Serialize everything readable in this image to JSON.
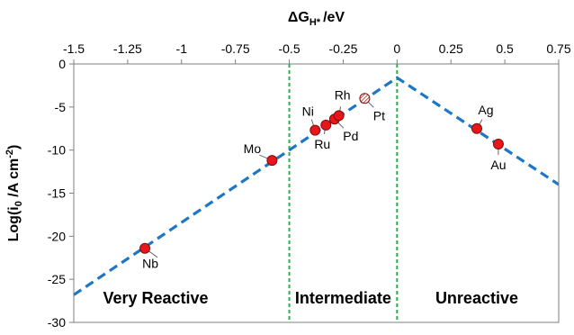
{
  "chart_data": {
    "type": "scatter",
    "xlabel": "ΔG",
    "xlabel_sub": "H*",
    "xlabel_unit": "/eV",
    "ylabel": "Log(i",
    "ylabel_sub": "0",
    "ylabel_rest": " /A cm",
    "ylabel_sup": "-2",
    "ylabel_close": ")",
    "xlim": [
      -1.5,
      0.75
    ],
    "ylim": [
      -30,
      0
    ],
    "x_ticks": [
      "-1.5",
      "-1.25",
      "-1",
      "-0.75",
      "-0.5",
      "-0.25",
      "0",
      "0.25",
      "0.5",
      "0.75"
    ],
    "x_tick_values": [
      -1.5,
      -1.25,
      -1,
      -0.75,
      -0.5,
      -0.25,
      0,
      0.25,
      0.5,
      0.75
    ],
    "y_ticks": [
      "0",
      "-5",
      "-10",
      "-15",
      "-20",
      "-25",
      "-30"
    ],
    "y_tick_values": [
      0,
      -5,
      -10,
      -15,
      -20,
      -25,
      -30
    ],
    "x_axis_position": "top",
    "grid": false,
    "trend_line": {
      "points": [
        [
          -1.5,
          -26.8
        ],
        [
          0,
          -1.6
        ],
        [
          0.75,
          -14.0
        ]
      ],
      "color": "#1f77c4",
      "style": "dashed"
    },
    "region_dividers": {
      "x": [
        -0.5,
        0
      ],
      "color": "#22b14c",
      "style": "dashed"
    },
    "regions": [
      {
        "label": "Very Reactive",
        "x": -1.12
      },
      {
        "label": "Intermediate",
        "x": -0.25
      },
      {
        "label": "Unreactive",
        "x": 0.37
      }
    ],
    "points": [
      {
        "label": "Nb",
        "x": -1.17,
        "y": -21.4,
        "fill": "#e8161b",
        "hatched": false
      },
      {
        "label": "Mo",
        "x": -0.58,
        "y": -11.2,
        "fill": "#e8161b",
        "hatched": false
      },
      {
        "label": "Ni",
        "x": -0.38,
        "y": -7.7,
        "fill": "#e8161b",
        "hatched": false
      },
      {
        "label": "Ru",
        "x": -0.33,
        "y": -7.1,
        "fill": "#e8161b",
        "hatched": false
      },
      {
        "label": "Pd",
        "x": -0.29,
        "y": -6.4,
        "fill": "#e8161b",
        "hatched": false
      },
      {
        "label": "Rh",
        "x": -0.27,
        "y": -6.0,
        "fill": "#e8161b",
        "hatched": false
      },
      {
        "label": "Pt",
        "x": -0.15,
        "y": -4.0,
        "fill": "#e8161b",
        "hatched": true
      },
      {
        "label": "Ag",
        "x": 0.37,
        "y": -7.5,
        "fill": "#e8161b",
        "hatched": false
      },
      {
        "label": "Au",
        "x": 0.47,
        "y": -9.3,
        "fill": "#e8161b",
        "hatched": false
      }
    ]
  }
}
